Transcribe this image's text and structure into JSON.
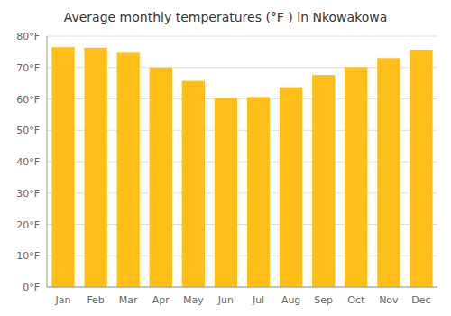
{
  "chart_data": {
    "type": "bar",
    "title": "Average monthly temperatures (°F ) in Nkowakowa",
    "categories": [
      "Jan",
      "Feb",
      "Mar",
      "Apr",
      "May",
      "Jun",
      "Jul",
      "Aug",
      "Sep",
      "Oct",
      "Nov",
      "Dec"
    ],
    "values": [
      76.5,
      76.3,
      74.7,
      70.0,
      65.7,
      60.3,
      60.6,
      63.7,
      67.6,
      70.1,
      73.0,
      75.7
    ],
    "color": "#FFBE18",
    "ylim": [
      0,
      80
    ],
    "yticks": [
      {
        "value": 0,
        "label": "0°F"
      },
      {
        "value": 10,
        "label": "10°F"
      },
      {
        "value": 20,
        "label": "20°F"
      },
      {
        "value": 30,
        "label": "30°F"
      },
      {
        "value": 40,
        "label": "40°F"
      },
      {
        "value": 50,
        "label": "50°F"
      },
      {
        "value": 60,
        "label": "60°F"
      },
      {
        "value": 70,
        "label": "70°F"
      },
      {
        "value": 80,
        "label": "80°F"
      }
    ],
    "grid": true
  }
}
